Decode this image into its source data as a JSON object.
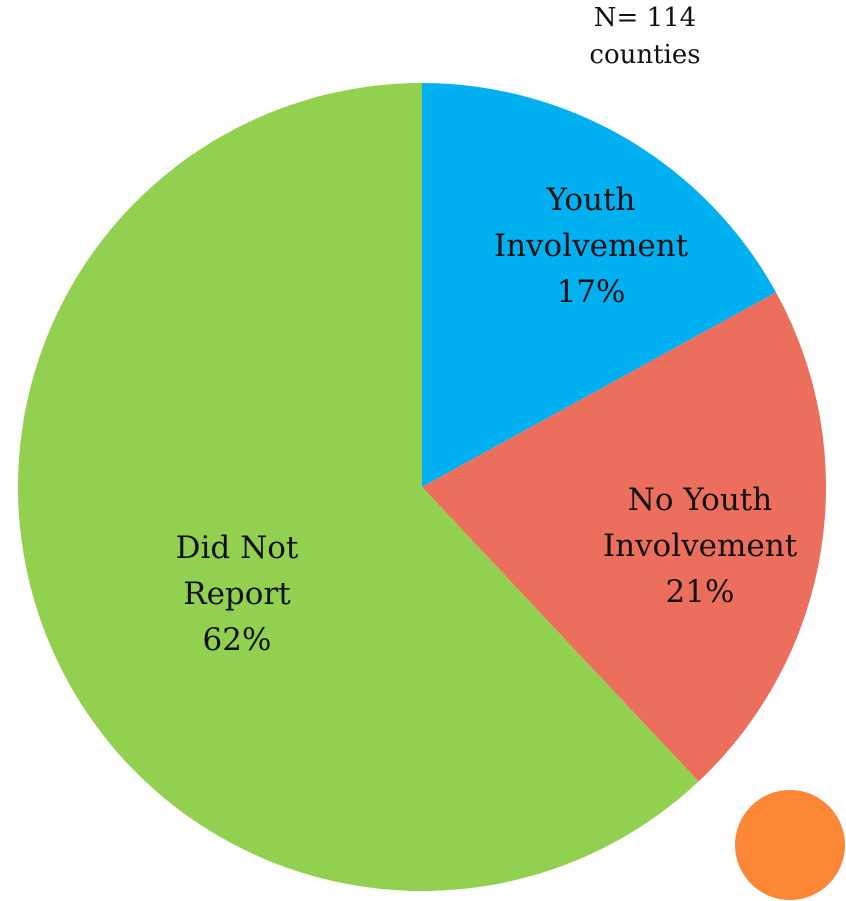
{
  "note": {
    "line1": "N= 114",
    "line2": "counties"
  },
  "chart_data": {
    "type": "pie",
    "title": "",
    "start_angle_deg": 0,
    "direction": "clockwise",
    "slices": [
      {
        "name": "Youth Involvement",
        "label_lines": [
          "Youth",
          "Involvement",
          "17%"
        ],
        "value": 17,
        "color": "#00b0f0"
      },
      {
        "name": "No Youth Involvement",
        "label_lines": [
          "No Youth",
          "Involvement",
          "21%"
        ],
        "value": 21,
        "color": "#eb6f5c"
      },
      {
        "name": "Did Not Report",
        "label_lines": [
          "Did Not",
          "Report",
          "62%"
        ],
        "value": 62,
        "color": "#92d050"
      }
    ]
  },
  "decoration": {
    "dot_color": "#fd8637"
  }
}
